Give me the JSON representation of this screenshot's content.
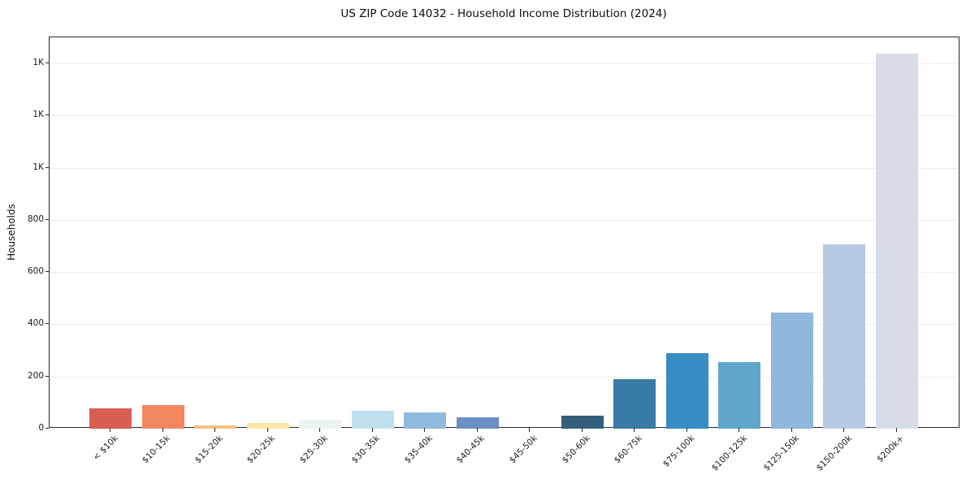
{
  "chart_data": {
    "type": "bar",
    "title": "US ZIP Code 14032 - Household Income Distribution (2024)",
    "xlabel": "",
    "ylabel": "Households",
    "ylim": [
      0,
      1500
    ],
    "grid": "horizontal",
    "legend": "none",
    "categories": [
      "< $10k",
      "$10-15k",
      "$15-20k",
      "$20-25k",
      "$25-30k",
      "$30-35k",
      "$35-40k",
      "$40-45k",
      "$45-50k",
      "$50-60k",
      "$60-75k",
      "$75-100k",
      "$100-125k",
      "$125-150k",
      "$150-200k",
      "$200k+"
    ],
    "values": [
      79,
      91,
      14,
      22,
      35,
      70,
      63,
      45,
      0,
      51,
      190,
      288,
      254,
      445,
      706,
      1437
    ],
    "bar_colors": [
      "#d65f51",
      "#f4875f",
      "#f3c17f",
      "#fbe7a9",
      "#eaf5f1",
      "#c0dfee",
      "#90badd",
      "#6b8fc6",
      "#4a6fae",
      "#335f7c",
      "#377ba6",
      "#388dc4",
      "#5ea6cc",
      "#8fb8dc",
      "#b7c9e2",
      "#d8dbe8"
    ],
    "yticks": {
      "values": [
        0,
        200,
        400,
        600,
        800,
        1000,
        1200,
        1400
      ],
      "labels": [
        "0",
        "200",
        "400",
        "600",
        "800",
        "1K",
        "1K",
        "1K"
      ]
    }
  }
}
